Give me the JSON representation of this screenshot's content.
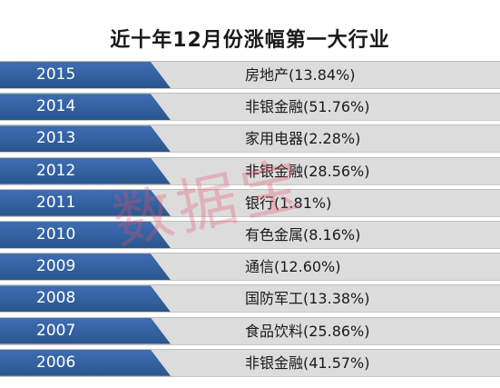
{
  "title": "近十年12月份涨幅第一大行业",
  "watermark": "数据宝",
  "rows": [
    {
      "year": "2015",
      "industry": "房地产(13.84%)"
    },
    {
      "year": "2014",
      "industry": "非银金融(51.76%)"
    },
    {
      "year": "2013",
      "industry": "家用电器(2.28%)"
    },
    {
      "year": "2012",
      "industry": "非银金融(28.56%)"
    },
    {
      "year": "2011",
      "industry": "银行(1.81%)"
    },
    {
      "year": "2010",
      "industry": "有色金属(8.16%)"
    },
    {
      "year": "2009",
      "industry": "通信(12.60%)"
    },
    {
      "year": "2008",
      "industry": "国防军工(13.38%)"
    },
    {
      "year": "2007",
      "industry": "食品饮料(25.86%)"
    },
    {
      "year": "2006",
      "industry": "非银金融(41.57%)"
    }
  ],
  "colors": {
    "band": "#2f5f9e",
    "row_bg": "#dcdcdc",
    "watermark": "#e85068"
  }
}
